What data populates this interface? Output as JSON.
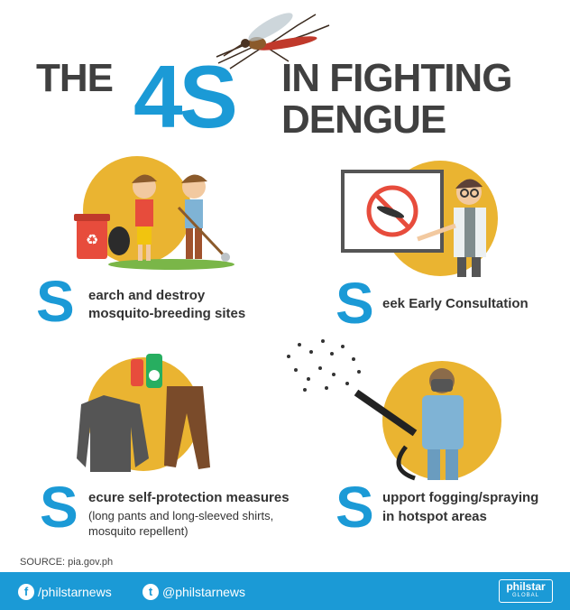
{
  "title": {
    "the": "THE",
    "four_s": "4S",
    "line1": "IN FIGHTING",
    "line2": "DENGUE"
  },
  "items": [
    {
      "letter": "S",
      "text_line1": "earch and destroy",
      "text_line2": "mosquito-breeding sites",
      "icon": "cleanup-kids"
    },
    {
      "letter": "S",
      "text_line1": "eek Early Consultation",
      "icon": "doctor-no-mosquito"
    },
    {
      "letter": "S",
      "text_line1": "ecure self-protection measures",
      "detail_line1": "(long pants and long-sleeved shirts,",
      "detail_line2": "mosquito repellent)",
      "icon": "clothes-repellent"
    },
    {
      "letter": "S",
      "text_line1": "upport fogging/spraying",
      "text_line2": "in hotspot areas",
      "icon": "fogging-worker"
    }
  ],
  "source": "SOURCE: pia.gov.ph",
  "footer": {
    "facebook": "/philstarnews",
    "twitter": "@philstarnews",
    "logo_top": "philstar",
    "logo_bottom": "GLOBAL"
  },
  "colors": {
    "accent": "#1b9ad6",
    "circle": "#eab431",
    "text": "#404040"
  }
}
